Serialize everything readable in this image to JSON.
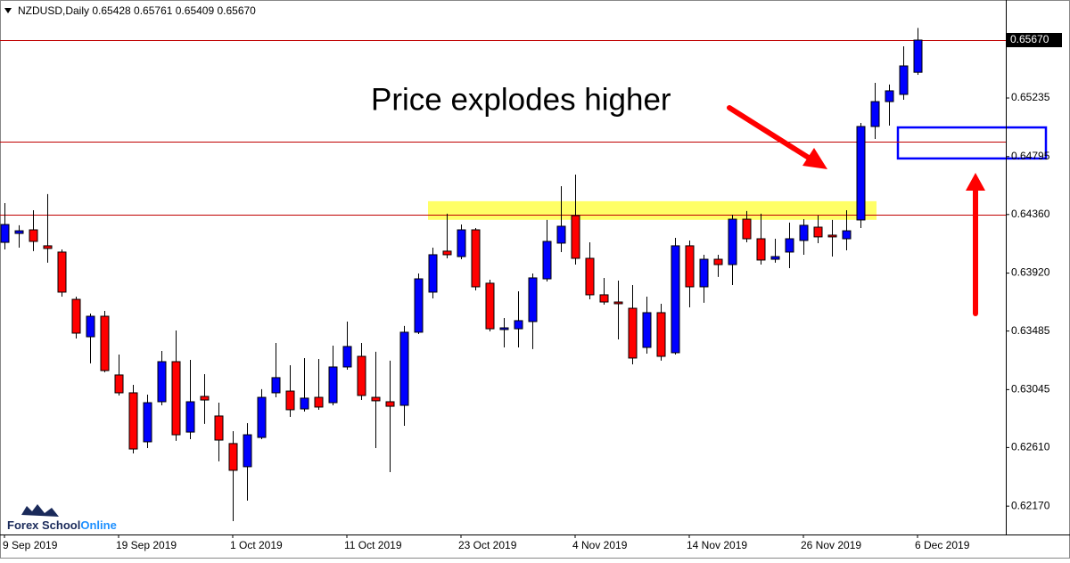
{
  "chart_data": {
    "type": "candlestick",
    "title": "NZDUSD,Daily  0.65428 0.65761 0.65409 0.65670",
    "annotation": "Price explodes higher",
    "watermark": [
      "Forex School",
      "Online"
    ],
    "categories": [
      "9 Sep 2019",
      null,
      null,
      null,
      null,
      null,
      null,
      null,
      "19 Sep 2019",
      null,
      null,
      null,
      null,
      null,
      null,
      null,
      "1 Oct 2019",
      null,
      null,
      null,
      null,
      null,
      null,
      null,
      "11 Oct 2019",
      null,
      null,
      null,
      null,
      null,
      null,
      null,
      "23 Oct 2019",
      null,
      null,
      null,
      null,
      null,
      null,
      null,
      "4 Nov 2019",
      null,
      null,
      null,
      null,
      null,
      null,
      null,
      "14 Nov 2019",
      null,
      null,
      null,
      null,
      null,
      null,
      null,
      "26 Nov 2019",
      null,
      null,
      null,
      null,
      null,
      null,
      null,
      "6 Dec 2019"
    ],
    "open": [
      0.64151,
      0.64218,
      0.64245,
      0.64125,
      0.64078,
      0.63723,
      0.63442,
      0.63596,
      0.63155,
      0.63021,
      0.62653,
      0.62954,
      0.63255,
      0.62726,
      0.62994,
      0.62847,
      0.6264,
      0.62466,
      0.62686,
      0.63021,
      0.63034,
      0.629,
      0.62987,
      0.62947,
      0.63215,
      0.63295,
      0.62987,
      0.62954,
      0.62927,
      0.63476,
      0.63777,
      0.64085,
      0.64044,
      0.64245,
      0.63844,
      0.63496,
      0.63502,
      0.63556,
      0.63877,
      0.64145,
      0.64352,
      0.64031,
      0.63757,
      0.63703,
      0.63656,
      0.63362,
      0.63623,
      0.63322,
      0.64125,
      0.63817,
      0.64024,
      0.63984,
      0.64325,
      0.64178,
      0.64024,
      0.64078,
      0.64165,
      0.64265,
      0.64205,
      0.64178,
      0.64319,
      0.65021,
      0.65208,
      0.65262,
      0.65428
    ],
    "high": [
      0.64446,
      0.64279,
      0.64392,
      0.64513,
      0.64098,
      0.63743,
      0.63616,
      0.63636,
      0.63308,
      0.63081,
      0.63007,
      0.63335,
      0.63489,
      0.63268,
      0.63161,
      0.62947,
      0.62733,
      0.62793,
      0.63048,
      0.63395,
      0.63228,
      0.63282,
      0.63275,
      0.63375,
      0.63556,
      0.63395,
      0.63329,
      0.63262,
      0.63523,
      0.63917,
      0.64111,
      0.64366,
      0.64285,
      0.64258,
      0.6387,
      0.63583,
      0.63783,
      0.63917,
      0.64319,
      0.64573,
      0.6466,
      0.64151,
      0.63884,
      0.63864,
      0.6383,
      0.63743,
      0.6369,
      0.64185,
      0.64165,
      0.64058,
      0.64058,
      0.64359,
      0.64386,
      0.64366,
      0.64178,
      0.64299,
      0.64325,
      0.64352,
      0.64319,
      0.64392,
      0.65048,
      0.65349,
      0.65336,
      0.65623,
      0.65761
    ],
    "low": [
      0.64098,
      0.64111,
      0.64085,
      0.63998,
      0.63743,
      0.63429,
      0.63242,
      0.63175,
      0.63001,
      0.62566,
      0.62606,
      0.62927,
      0.6266,
      0.62673,
      0.62787,
      0.62506,
      0.62057,
      0.62211,
      0.62673,
      0.62987,
      0.6284,
      0.6288,
      0.62894,
      0.62927,
      0.63195,
      0.62967,
      0.62606,
      0.62425,
      0.62773,
      0.63462,
      0.6373,
      0.64031,
      0.64024,
      0.6379,
      0.63482,
      0.63362,
      0.63362,
      0.63349,
      0.63857,
      0.64078,
      0.63984,
      0.63723,
      0.63683,
      0.63422,
      0.63235,
      0.63315,
      0.63262,
      0.63308,
      0.63663,
      0.63697,
      0.63891,
      0.6383,
      0.64151,
      0.63984,
      0.63998,
      0.63957,
      0.64058,
      0.64145,
      0.64044,
      0.64091,
      0.64258,
      0.64927,
      0.65028,
      0.65222,
      0.65409
    ],
    "close": [
      0.64285,
      0.64238,
      0.64158,
      0.64105,
      0.63777,
      0.63469,
      0.63596,
      0.63188,
      0.63021,
      0.62599,
      0.62947,
      0.63255,
      0.62706,
      0.62954,
      0.62967,
      0.62666,
      0.62439,
      0.62706,
      0.62987,
      0.63135,
      0.62894,
      0.62981,
      0.62914,
      0.63215,
      0.63369,
      0.63001,
      0.62961,
      0.6292,
      0.63476,
      0.63877,
      0.64058,
      0.64058,
      0.64245,
      0.63817,
      0.63502,
      0.63509,
      0.63563,
      0.63884,
      0.64158,
      0.64272,
      0.64031,
      0.63757,
      0.63703,
      0.6369,
      0.63282,
      0.63623,
      0.63295,
      0.64125,
      0.63817,
      0.64024,
      0.63984,
      0.64325,
      0.64178,
      0.64018,
      0.64044,
      0.64178,
      0.64279,
      0.64192,
      0.64192,
      0.64238,
      0.65021,
      0.65208,
      0.65289,
      0.65476,
      0.6567
    ],
    "up_color": "#0000ff",
    "down_color": "#ff0000",
    "ylim": [
      0.61957,
      0.65971
    ],
    "yticks": [
      0.65235,
      0.64795,
      {
        "value": 0.6436,
        "label": "0.64360"
      },
      {
        "value": 0.6392,
        "label": "0.63920"
      },
      0.63485,
      0.63045,
      {
        "value": 0.6261,
        "label": "0.62610"
      },
      {
        "value": 0.6217,
        "label": "0.62170"
      }
    ],
    "last_price": {
      "value": 0.6567,
      "label": "0.65670"
    },
    "hlines": [
      0.6567,
      0.64907,
      0.6436
    ],
    "hline_color": "#c00000",
    "zones": [
      {
        "ylim": [
          0.6432,
          0.6446
        ],
        "color": "#ffff66"
      },
      {
        "ylim": [
          0.64781,
          0.65014
        ],
        "color": "#0000ff"
      }
    ]
  }
}
